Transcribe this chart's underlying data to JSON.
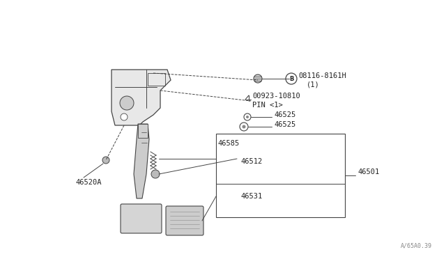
{
  "bg_color": "#ffffff",
  "line_color": "#444444",
  "text_color": "#222222",
  "watermark": "A/65A0.39",
  "diagram_scale": 1.0,
  "parts_labels": {
    "B_label": "08116-8161H",
    "B_sub": "(1)",
    "pin_label": "00923-10810",
    "pin_sub": "PIN <1>",
    "p46525a": "46525",
    "p46525b": "46525",
    "p46585": "46585",
    "p46512": "46512",
    "p46501": "46501",
    "p46531": "46531",
    "p46520A": "46520A"
  }
}
